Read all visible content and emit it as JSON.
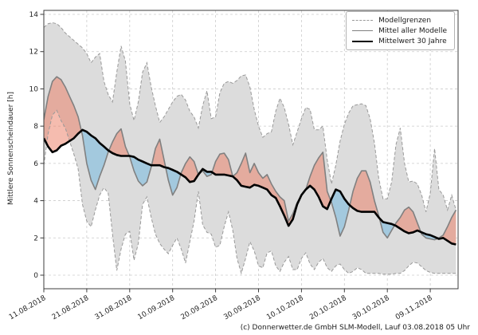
{
  "y_axis": {
    "label": "Mittlere Sonnenscheindauer [h]",
    "ticks": [
      0,
      2,
      4,
      6,
      8,
      10,
      12,
      14
    ]
  },
  "x_axis": {
    "tick_labels": [
      "11.08.2018",
      "21.08.2018",
      "31.08.2018",
      "10.09.2018",
      "20.09.2018",
      "30.09.2018",
      "10.10.2018",
      "20.10.2018",
      "30.10.2018",
      "09.11.2018"
    ],
    "tick_day_indices": [
      0,
      10,
      20,
      30,
      40,
      50,
      60,
      70,
      80,
      90
    ]
  },
  "legend": {
    "items": [
      {
        "label": "Modellgrenzen",
        "style": "dashed-gray"
      },
      {
        "label": "Mittel aller Modelle",
        "style": "solid-gray"
      },
      {
        "label": "Mittelwert 30 Jahre",
        "style": "solid-black-thick"
      }
    ]
  },
  "caption": "(c) Donnerwetter.de GmbH SLM-Modell, Lauf 03.08.2018 05 Uhr",
  "colors": {
    "band_fill": "#dcdcdc",
    "band_edge": "#999999",
    "model_mean_line": "#808080",
    "mean30_line": "#000000",
    "above_fill": "rgba(235,122,96,0.50)",
    "below_fill": "rgba(125,188,224,0.60)",
    "grid": "#cbcbcb",
    "spine": "#3c3c3c",
    "tick_text": "#262626"
  },
  "chart_data": {
    "type": "area",
    "title": "",
    "ylabel": "Mittlere Sonnenscheindauer [h]",
    "xlabel": "",
    "grid": true,
    "legend_position": "upper right",
    "ylim": [
      -0.73,
      14.21
    ],
    "x_days_span": 96,
    "x_start_label": "11.08.2018",
    "x_tick_labels": [
      "11.08.2018",
      "21.08.2018",
      "31.08.2018",
      "10.09.2018",
      "20.09.2018",
      "30.09.2018",
      "10.10.2018",
      "20.10.2018",
      "30.10.2018",
      "09.11.2018"
    ],
    "x_tick_day_indices": [
      0,
      10,
      20,
      30,
      40,
      50,
      60,
      70,
      80,
      90
    ],
    "y_ticks": [
      0,
      2,
      4,
      6,
      8,
      10,
      12,
      14
    ],
    "series": [
      {
        "name": "Modellgrenzen (obere Grenze)",
        "role": "upper_bound",
        "values": [
          13.3,
          13.5,
          13.55,
          13.5,
          13.3,
          13.0,
          12.8,
          12.6,
          12.4,
          12.2,
          11.9,
          11.4,
          11.7,
          11.9,
          10.4,
          9.7,
          9.3,
          10.9,
          12.3,
          11.5,
          9.2,
          8.3,
          9.3,
          10.9,
          11.4,
          10.1,
          9.1,
          8.2,
          8.5,
          8.9,
          9.3,
          9.6,
          9.7,
          9.4,
          8.8,
          8.5,
          7.9,
          9.1,
          9.9,
          8.4,
          8.5,
          9.8,
          10.3,
          10.4,
          10.3,
          10.45,
          10.7,
          10.75,
          10.1,
          8.9,
          8.0,
          7.4,
          7.6,
          7.7,
          8.8,
          9.5,
          9.0,
          8.1,
          7.0,
          7.7,
          8.4,
          9.0,
          8.9,
          7.8,
          7.8,
          8.0,
          6.2,
          4.9,
          5.9,
          7.2,
          8.1,
          8.7,
          9.1,
          9.15,
          9.2,
          9.1,
          8.4,
          7.1,
          5.2,
          4.1,
          4.1,
          5.0,
          7.0,
          7.9,
          6.0,
          5.0,
          5.05,
          4.9,
          4.3,
          3.4,
          4.4,
          6.8,
          4.6,
          4.3,
          3.5,
          4.3,
          3.5
        ]
      },
      {
        "name": "Modellgrenzen (untere Grenze)",
        "role": "lower_bound",
        "values": [
          5.9,
          7.6,
          8.6,
          8.85,
          8.3,
          7.9,
          7.2,
          6.5,
          5.7,
          3.8,
          2.9,
          2.6,
          3.5,
          4.3,
          4.7,
          4.4,
          2.2,
          0.25,
          1.4,
          2.2,
          2.35,
          0.8,
          1.7,
          3.8,
          4.2,
          3.1,
          2.2,
          1.7,
          1.4,
          1.15,
          1.6,
          2.0,
          1.4,
          0.65,
          1.8,
          2.9,
          4.5,
          2.7,
          2.3,
          2.2,
          1.5,
          1.6,
          2.6,
          3.4,
          2.4,
          0.9,
          0.1,
          0.9,
          1.8,
          1.3,
          0.5,
          0.4,
          1.2,
          1.3,
          0.5,
          0.2,
          0.7,
          1.0,
          0.3,
          0.3,
          0.9,
          1.2,
          0.6,
          0.3,
          0.7,
          0.9,
          0.4,
          0.2,
          0.5,
          0.6,
          0.3,
          0.1,
          0.2,
          0.4,
          0.3,
          0.1,
          0.1,
          0.1,
          0.1,
          0.05,
          0.05,
          0.05,
          0.1,
          0.1,
          0.25,
          0.5,
          0.7,
          0.65,
          0.45,
          0.25,
          0.15,
          0.1,
          0.1,
          0.1,
          0.1,
          0.1,
          0.1
        ]
      },
      {
        "name": "Mittel aller Modelle",
        "role": "model_mean",
        "values": [
          8.35,
          9.6,
          10.4,
          10.65,
          10.5,
          10.1,
          9.6,
          9.1,
          8.5,
          7.5,
          6.0,
          5.1,
          4.6,
          5.3,
          5.9,
          6.6,
          7.15,
          7.6,
          7.85,
          6.9,
          6.35,
          5.6,
          5.05,
          4.8,
          5.0,
          5.8,
          6.8,
          7.3,
          6.2,
          5.1,
          4.3,
          4.7,
          5.5,
          6.0,
          6.35,
          6.1,
          5.4,
          5.6,
          5.3,
          5.4,
          6.1,
          6.5,
          6.55,
          6.2,
          5.3,
          5.5,
          6.0,
          6.55,
          5.5,
          6.0,
          5.5,
          5.2,
          5.4,
          4.9,
          4.5,
          4.2,
          4.0,
          2.9,
          3.3,
          3.9,
          4.3,
          4.6,
          5.3,
          5.9,
          6.3,
          6.6,
          4.5,
          3.9,
          3.1,
          2.1,
          2.6,
          3.5,
          4.5,
          5.2,
          5.6,
          5.6,
          5.0,
          4.0,
          3.2,
          2.3,
          2.0,
          2.4,
          2.8,
          3.1,
          3.5,
          3.65,
          3.4,
          2.8,
          2.2,
          2.0,
          1.95,
          1.9,
          2.0,
          2.15,
          2.6,
          3.1,
          3.5
        ]
      },
      {
        "name": "Mittelwert 30 Jahre",
        "role": "climate_mean_30y",
        "values": [
          7.35,
          6.9,
          6.6,
          6.7,
          6.95,
          7.05,
          7.2,
          7.35,
          7.6,
          7.8,
          7.7,
          7.5,
          7.35,
          7.1,
          6.9,
          6.7,
          6.55,
          6.45,
          6.4,
          6.4,
          6.4,
          6.35,
          6.2,
          6.1,
          6.0,
          5.9,
          5.9,
          5.9,
          5.8,
          5.75,
          5.65,
          5.55,
          5.4,
          5.25,
          5.0,
          5.05,
          5.4,
          5.7,
          5.55,
          5.55,
          5.4,
          5.4,
          5.4,
          5.35,
          5.3,
          5.1,
          4.8,
          4.75,
          4.7,
          4.85,
          4.8,
          4.7,
          4.6,
          4.3,
          4.15,
          3.7,
          3.2,
          2.65,
          3.0,
          3.8,
          4.3,
          4.6,
          4.8,
          4.6,
          4.2,
          3.7,
          3.55,
          4.1,
          4.6,
          4.5,
          4.1,
          3.8,
          3.6,
          3.45,
          3.4,
          3.4,
          3.4,
          3.4,
          3.1,
          2.85,
          2.8,
          2.75,
          2.65,
          2.5,
          2.35,
          2.25,
          2.3,
          2.4,
          2.3,
          2.2,
          2.15,
          2.05,
          1.95,
          2.0,
          1.85,
          1.7,
          1.65
        ]
      }
    ]
  }
}
